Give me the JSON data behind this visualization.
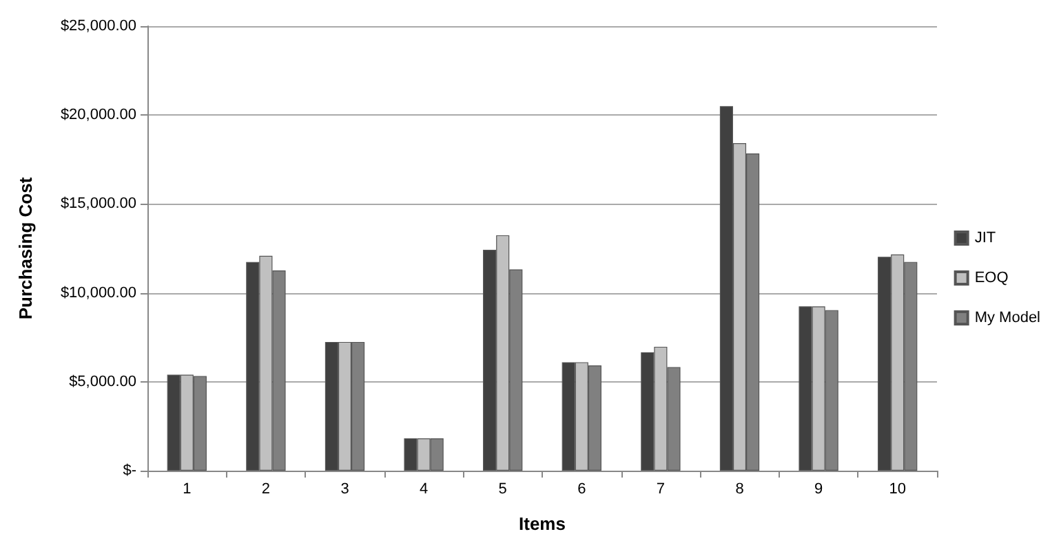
{
  "chart_data": {
    "type": "bar",
    "xlabel": "Items",
    "ylabel": "Purchasing Cost",
    "categories": [
      "1",
      "2",
      "3",
      "4",
      "5",
      "6",
      "7",
      "8",
      "9",
      "10"
    ],
    "series": [
      {
        "name": "JIT",
        "color": "#404040",
        "values": [
          5400,
          11740,
          7240,
          1820,
          12420,
          6100,
          6660,
          20500,
          9240,
          12030
        ]
      },
      {
        "name": "EOQ",
        "color": "#c0c0c0",
        "values": [
          5400,
          12080,
          7240,
          1820,
          13240,
          6100,
          6970,
          18420,
          9240,
          12160
        ]
      },
      {
        "name": "My Model",
        "color": "#808080",
        "values": [
          5320,
          11260,
          7240,
          1820,
          11320,
          5920,
          5820,
          17840,
          9030,
          11740
        ]
      }
    ],
    "ylim": [
      0,
      25000
    ],
    "yticks": [
      {
        "value": 0,
        "label": "$-"
      },
      {
        "value": 5000,
        "label": "$5,000.00"
      },
      {
        "value": 10000,
        "label": "$10,000.00"
      },
      {
        "value": 15000,
        "label": "$15,000.00"
      },
      {
        "value": 20000,
        "label": "$20,000.00"
      },
      {
        "value": 25000,
        "label": "$25,000.00"
      }
    ],
    "grid": "y",
    "legend": "right"
  }
}
